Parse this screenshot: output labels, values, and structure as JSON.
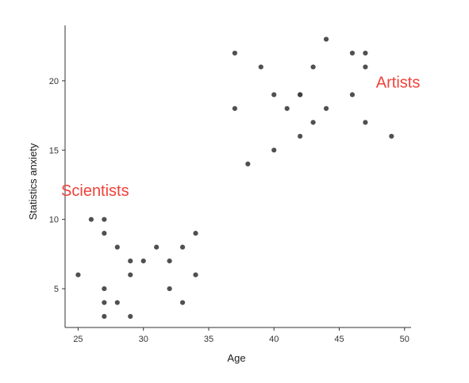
{
  "chart_data": {
    "type": "scatter",
    "title": "",
    "xlabel": "Age",
    "ylabel": "Statistics anxiety",
    "xlim": [
      24,
      50.5
    ],
    "ylim": [
      2.2,
      24
    ],
    "xticks": [
      25,
      30,
      35,
      40,
      45,
      50
    ],
    "yticks": [
      5,
      10,
      15,
      20
    ],
    "grid": false,
    "point_color": "#3d3d3d",
    "annotation_color": "#f0413a",
    "annotations": [
      {
        "text": "Scientists",
        "x": 26.3,
        "y": 11.7
      },
      {
        "text": "Artists",
        "x": 49.5,
        "y": 19.5
      }
    ],
    "points": [
      {
        "x": 25,
        "y": 6
      },
      {
        "x": 26,
        "y": 10
      },
      {
        "x": 27,
        "y": 10
      },
      {
        "x": 27,
        "y": 9
      },
      {
        "x": 27,
        "y": 5
      },
      {
        "x": 27,
        "y": 4
      },
      {
        "x": 27,
        "y": 3
      },
      {
        "x": 28,
        "y": 8
      },
      {
        "x": 28,
        "y": 4
      },
      {
        "x": 29,
        "y": 7
      },
      {
        "x": 29,
        "y": 6
      },
      {
        "x": 29,
        "y": 3
      },
      {
        "x": 30,
        "y": 7
      },
      {
        "x": 31,
        "y": 8
      },
      {
        "x": 32,
        "y": 7
      },
      {
        "x": 32,
        "y": 5
      },
      {
        "x": 33,
        "y": 8
      },
      {
        "x": 33,
        "y": 4
      },
      {
        "x": 34,
        "y": 9
      },
      {
        "x": 34,
        "y": 6
      },
      {
        "x": 37,
        "y": 22
      },
      {
        "x": 37,
        "y": 18
      },
      {
        "x": 38,
        "y": 14
      },
      {
        "x": 39,
        "y": 21
      },
      {
        "x": 40,
        "y": 19
      },
      {
        "x": 40,
        "y": 15
      },
      {
        "x": 41,
        "y": 18
      },
      {
        "x": 42,
        "y": 19
      },
      {
        "x": 42,
        "y": 19
      },
      {
        "x": 42,
        "y": 16
      },
      {
        "x": 43,
        "y": 21
      },
      {
        "x": 43,
        "y": 17
      },
      {
        "x": 44,
        "y": 23
      },
      {
        "x": 44,
        "y": 18
      },
      {
        "x": 46,
        "y": 22
      },
      {
        "x": 46,
        "y": 19
      },
      {
        "x": 47,
        "y": 22
      },
      {
        "x": 47,
        "y": 21
      },
      {
        "x": 47,
        "y": 17
      },
      {
        "x": 49,
        "y": 16
      }
    ]
  }
}
